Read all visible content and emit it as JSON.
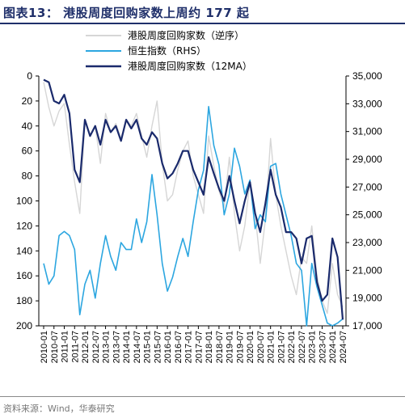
{
  "title": "图表13：   港股周度回购家数上周约 177 起",
  "source": "资料来源：Wind，华泰研究",
  "colors": {
    "weekly": "#d6d6d6",
    "hsi": "#2ca6e0",
    "ma12": "#1a2a6c",
    "title": "#1f2f6a"
  },
  "chart_data": {
    "type": "line",
    "title": "",
    "legend_position": "top-center",
    "x_range": [
      "2010-01",
      "2024-07"
    ],
    "x_ticks": [
      "2010-01",
      "2010-07",
      "2011-01",
      "2011-07",
      "2012-01",
      "2012-07",
      "2013-01",
      "2013-07",
      "2014-01",
      "2014-07",
      "2015-01",
      "2015-07",
      "2016-01",
      "2016-07",
      "2017-01",
      "2017-07",
      "2018-01",
      "2018-07",
      "2019-01",
      "2019-07",
      "2020-01",
      "2020-07",
      "2021-01",
      "2021-07",
      "2022-01",
      "2022-07",
      "2023-01",
      "2023-07",
      "2024-01",
      "2024-07"
    ],
    "y_left": {
      "range": [
        0,
        200
      ],
      "inverted": true,
      "ticks": [
        "0",
        "20",
        "40",
        "60",
        "80",
        "100",
        "120",
        "140",
        "160",
        "180",
        "200"
      ]
    },
    "y_right": {
      "range": [
        17000,
        35000
      ],
      "ticks": [
        "35,000",
        "33,000",
        "31,000",
        "29,000",
        "27,000",
        "25,000",
        "23,000",
        "21,000",
        "19,000",
        "17,000"
      ]
    },
    "series": [
      {
        "name": "港股周度回购家数（逆序）",
        "axis": "left",
        "style": "thin-gray",
        "x": [
          "2010-01",
          "2010-04",
          "2010-07",
          "2010-10",
          "2011-01",
          "2011-04",
          "2011-07",
          "2011-10",
          "2012-01",
          "2012-04",
          "2012-07",
          "2012-10",
          "2013-01",
          "2013-04",
          "2013-07",
          "2013-10",
          "2014-01",
          "2014-04",
          "2014-07",
          "2014-10",
          "2015-01",
          "2015-04",
          "2015-07",
          "2015-10",
          "2016-01",
          "2016-04",
          "2016-07",
          "2016-10",
          "2017-01",
          "2017-04",
          "2017-07",
          "2017-10",
          "2018-01",
          "2018-04",
          "2018-07",
          "2018-10",
          "2019-01",
          "2019-04",
          "2019-07",
          "2019-10",
          "2020-01",
          "2020-04",
          "2020-07",
          "2020-10",
          "2021-01",
          "2021-04",
          "2021-07",
          "2021-10",
          "2022-01",
          "2022-04",
          "2022-07",
          "2022-10",
          "2023-01",
          "2023-04",
          "2023-07",
          "2023-10",
          "2024-01",
          "2024-04",
          "2024-07"
        ],
        "values": [
          5,
          25,
          40,
          28,
          22,
          55,
          85,
          110,
          35,
          48,
          40,
          70,
          30,
          45,
          38,
          50,
          35,
          40,
          30,
          48,
          65,
          40,
          20,
          70,
          100,
          95,
          75,
          60,
          52,
          80,
          95,
          110,
          48,
          72,
          92,
          105,
          65,
          110,
          140,
          120,
          85,
          110,
          150,
          115,
          50,
          95,
          120,
          140,
          160,
          175,
          145,
          150,
          120,
          160,
          180,
          190,
          150,
          175,
          185
        ]
      },
      {
        "name": "恒生指数（RHS）",
        "axis": "right",
        "style": "light-blue",
        "x": [
          "2010-01",
          "2010-04",
          "2010-07",
          "2010-10",
          "2011-01",
          "2011-04",
          "2011-07",
          "2011-10",
          "2012-01",
          "2012-04",
          "2012-07",
          "2012-10",
          "2013-01",
          "2013-04",
          "2013-07",
          "2013-10",
          "2014-01",
          "2014-04",
          "2014-07",
          "2014-10",
          "2015-01",
          "2015-04",
          "2015-07",
          "2015-10",
          "2016-01",
          "2016-04",
          "2016-07",
          "2016-10",
          "2017-01",
          "2017-04",
          "2017-07",
          "2017-10",
          "2018-01",
          "2018-04",
          "2018-07",
          "2018-10",
          "2019-01",
          "2019-04",
          "2019-07",
          "2019-10",
          "2020-01",
          "2020-04",
          "2020-07",
          "2020-10",
          "2021-01",
          "2021-04",
          "2021-07",
          "2021-10",
          "2022-01",
          "2022-04",
          "2022-07",
          "2022-10",
          "2023-01",
          "2023-04",
          "2023-07",
          "2023-10",
          "2024-01",
          "2024-04",
          "2024-07"
        ],
        "values": [
          21500,
          20000,
          20600,
          23500,
          23800,
          23500,
          22500,
          17800,
          20000,
          21000,
          19000,
          21500,
          23500,
          22000,
          21000,
          23000,
          22500,
          22500,
          24700,
          23000,
          24500,
          27900,
          25000,
          21500,
          19500,
          20500,
          22000,
          23300,
          22000,
          24500,
          26800,
          28200,
          32800,
          30000,
          28600,
          25000,
          26500,
          29800,
          28500,
          26500,
          27500,
          24000,
          25000,
          24500,
          28500,
          28700,
          26500,
          25000,
          23500,
          21500,
          21000,
          16500,
          21500,
          19800,
          18500,
          17200,
          16000,
          17200,
          17500
        ]
      },
      {
        "name": "港股周度回购家数（12MA）",
        "axis": "left",
        "style": "dark-navy",
        "x": [
          "2010-01",
          "2010-04",
          "2010-07",
          "2010-10",
          "2011-01",
          "2011-04",
          "2011-07",
          "2011-10",
          "2012-01",
          "2012-04",
          "2012-07",
          "2012-10",
          "2013-01",
          "2013-04",
          "2013-07",
          "2013-10",
          "2014-01",
          "2014-04",
          "2014-07",
          "2014-10",
          "2015-01",
          "2015-04",
          "2015-07",
          "2015-10",
          "2016-01",
          "2016-04",
          "2016-07",
          "2016-10",
          "2017-01",
          "2017-04",
          "2017-07",
          "2017-10",
          "2018-01",
          "2018-04",
          "2018-07",
          "2018-10",
          "2019-01",
          "2019-04",
          "2019-07",
          "2019-10",
          "2020-01",
          "2020-04",
          "2020-07",
          "2020-10",
          "2021-01",
          "2021-04",
          "2021-07",
          "2021-10",
          "2022-01",
          "2022-04",
          "2022-07",
          "2022-10",
          "2023-01",
          "2023-04",
          "2023-07",
          "2023-10",
          "2024-01",
          "2024-04",
          "2024-07"
        ],
        "values": [
          3,
          5,
          20,
          22,
          15,
          30,
          75,
          85,
          35,
          48,
          40,
          55,
          35,
          45,
          40,
          52,
          35,
          42,
          35,
          50,
          55,
          45,
          50,
          70,
          82,
          78,
          70,
          60,
          60,
          75,
          85,
          95,
          65,
          78,
          90,
          100,
          80,
          100,
          118,
          100,
          85,
          110,
          125,
          102,
          75,
          95,
          105,
          125,
          125,
          130,
          150,
          130,
          128,
          165,
          180,
          175,
          130,
          145,
          195
        ]
      }
    ]
  }
}
